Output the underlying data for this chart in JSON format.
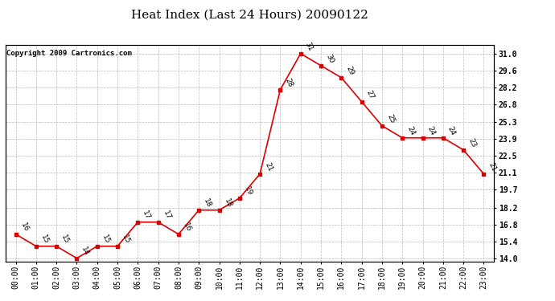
{
  "title": "Heat Index (Last 24 Hours) 20090122",
  "copyright": "Copyright 2009 Cartronics.com",
  "hours": [
    0,
    1,
    2,
    3,
    4,
    5,
    6,
    7,
    8,
    9,
    10,
    11,
    12,
    13,
    14,
    15,
    16,
    17,
    18,
    19,
    20,
    21,
    22,
    23
  ],
  "values": [
    16,
    15,
    15,
    14,
    15,
    15,
    17,
    17,
    16,
    18,
    18,
    19,
    21,
    28,
    31,
    30,
    29,
    27,
    25,
    24,
    24,
    24,
    23,
    21
  ],
  "x_labels": [
    "00:00",
    "01:00",
    "02:00",
    "03:00",
    "04:00",
    "05:00",
    "06:00",
    "07:00",
    "08:00",
    "09:00",
    "10:00",
    "11:00",
    "12:00",
    "13:00",
    "14:00",
    "15:00",
    "16:00",
    "17:00",
    "18:00",
    "19:00",
    "20:00",
    "21:00",
    "22:00",
    "23:00"
  ],
  "y_ticks": [
    14.0,
    15.4,
    16.8,
    18.2,
    19.7,
    21.1,
    22.5,
    23.9,
    25.3,
    26.8,
    28.2,
    29.6,
    31.0
  ],
  "ylim": [
    13.7,
    31.7
  ],
  "line_color": "#dd0000",
  "marker_color": "#dd0000",
  "bg_color": "#ffffff",
  "grid_color": "#bbbbbb",
  "title_fontsize": 11,
  "copyright_fontsize": 6.5,
  "label_fontsize": 7,
  "annot_fontsize": 6.5
}
